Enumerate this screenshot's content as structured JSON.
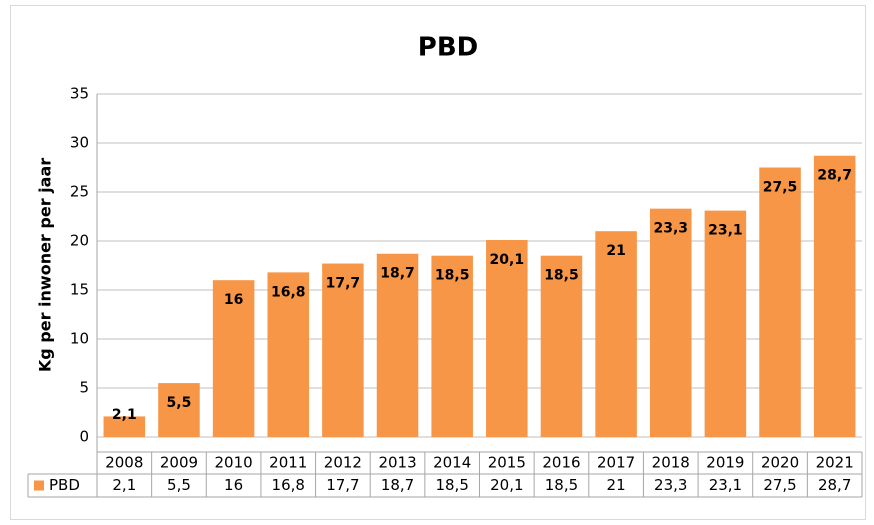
{
  "chart_data": {
    "type": "bar",
    "title": "PBD",
    "y_label": "Kg per inwoner per jaar",
    "categories": [
      "2008",
      "2009",
      "2010",
      "2011",
      "2012",
      "2013",
      "2014",
      "2015",
      "2016",
      "2017",
      "2018",
      "2019",
      "2020",
      "2021"
    ],
    "series": [
      {
        "name": "PBD",
        "color": "#f79646",
        "values": [
          2.1,
          5.5,
          16,
          16.8,
          17.7,
          18.7,
          18.5,
          20.1,
          18.5,
          21,
          23.3,
          23.1,
          27.5,
          28.7
        ],
        "value_labels": [
          "2,1",
          "5,5",
          "16",
          "16,8",
          "17,7",
          "18,7",
          "18,5",
          "20,1",
          "18,5",
          "21",
          "23,3",
          "23,1",
          "27,5",
          "28,7"
        ]
      }
    ],
    "ylim": [
      0,
      35
    ],
    "yticks": [
      0,
      5,
      10,
      15,
      20,
      25,
      30,
      35
    ],
    "grid": true
  }
}
